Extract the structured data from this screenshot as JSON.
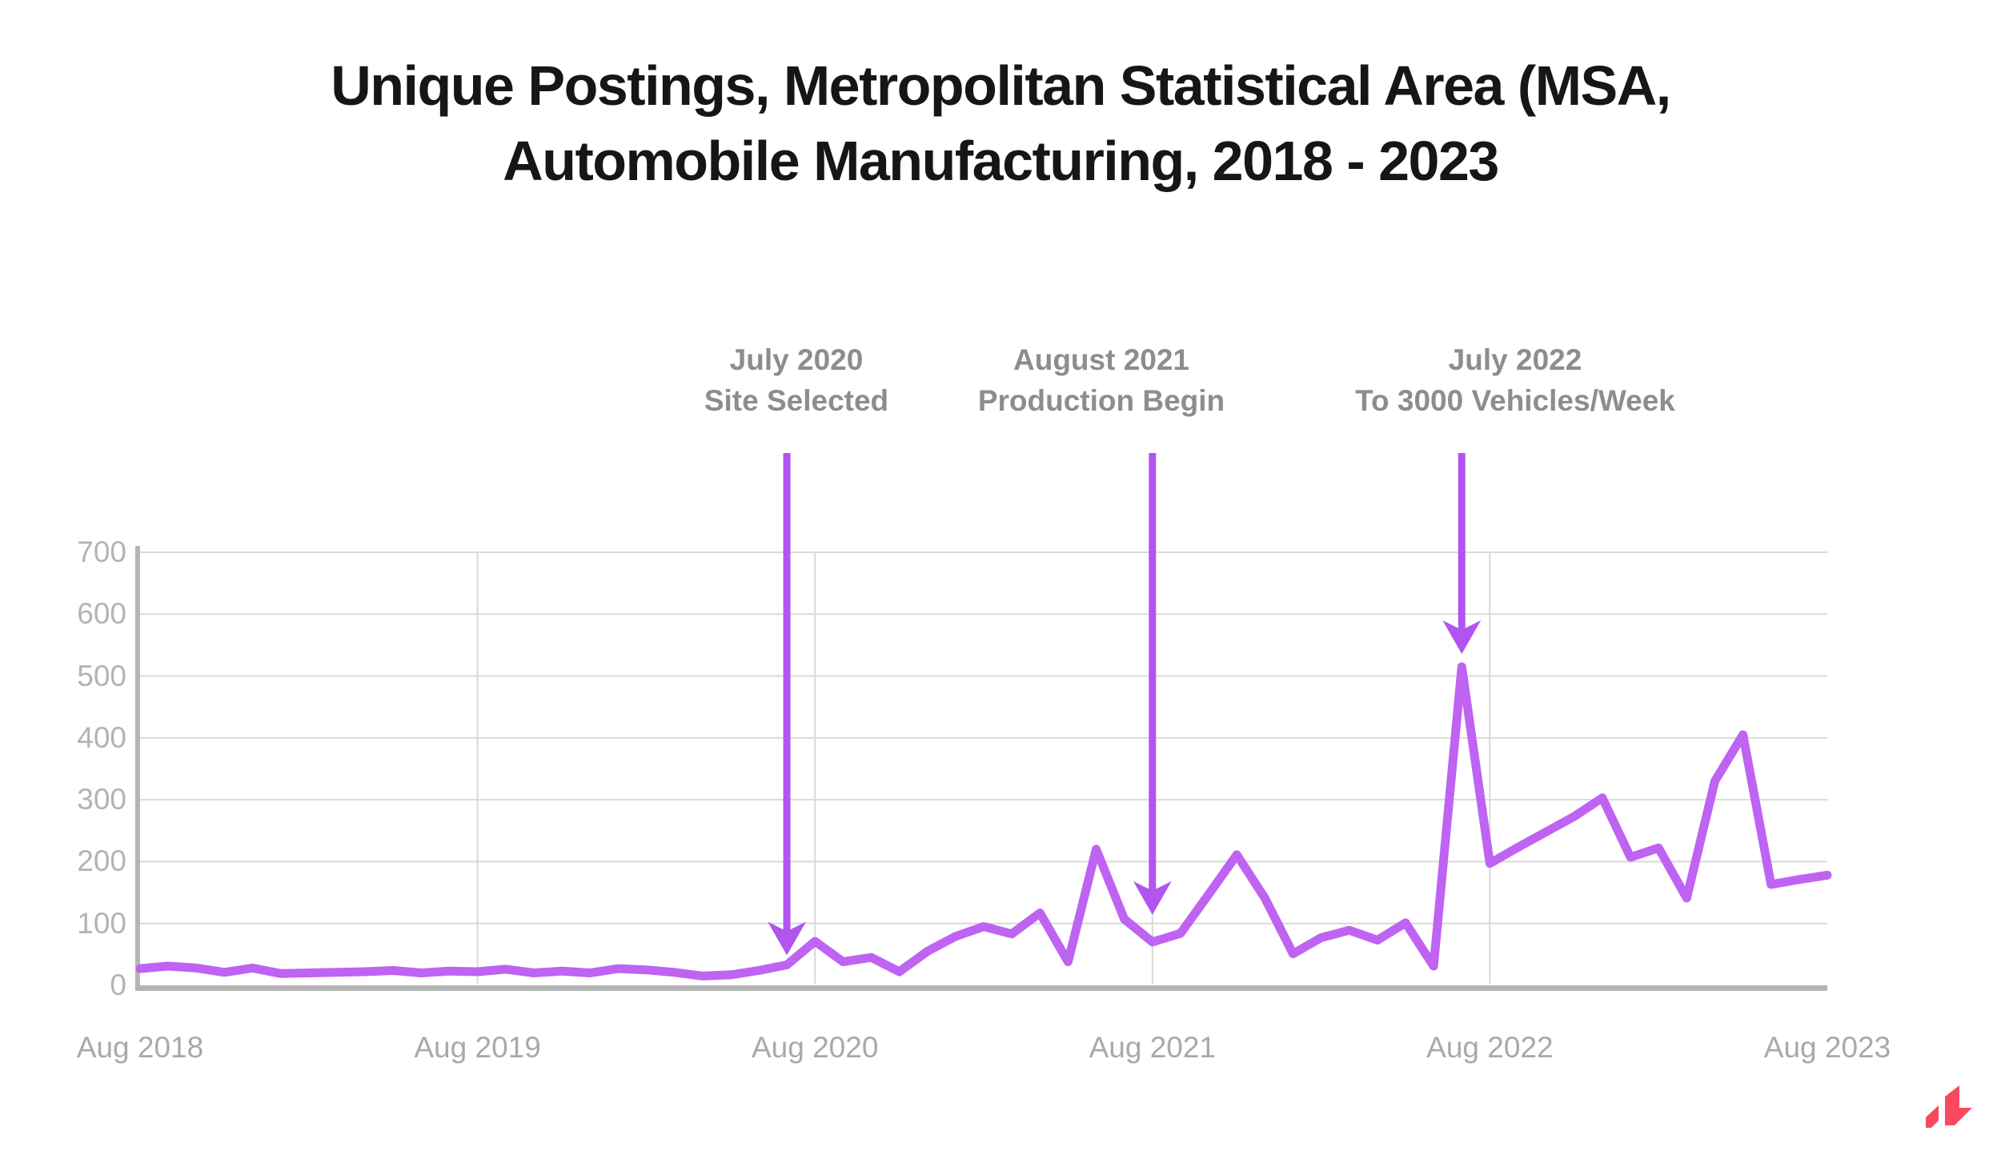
{
  "title": {
    "line1": "Unique Postings, Metropolitan Statistical Area (MSA,",
    "line2": "Automobile Manufacturing, 2018 - 2023"
  },
  "annotations": [
    {
      "line1": "July 2020",
      "line2": "Site Selected",
      "month_index": 23
    },
    {
      "line1": "August 2021",
      "line2": "Production Begin",
      "month_index": 36
    },
    {
      "line1": "July 2022",
      "line2": "To 3000 Vehicles/Week",
      "month_index": 47
    }
  ],
  "chart_data": {
    "type": "line",
    "title": "Unique Postings, Metropolitan Statistical Area (MSA, Automobile Manufacturing, 2018 - 2023",
    "x_monthly_start": "Aug 2018",
    "x_monthly_end": "Aug 2023",
    "x_tick_labels": [
      "Aug 2018",
      "Aug 2019",
      "Aug 2020",
      "Aug 2021",
      "Aug 2022",
      "Aug 2023"
    ],
    "y_ticks": [
      0,
      100,
      200,
      300,
      400,
      500,
      600,
      700
    ],
    "ylim": [
      0,
      700
    ],
    "grid": "horizontal every 100, vertical at yearly ticks",
    "legend": "none",
    "series": [
      {
        "name": "Unique Postings",
        "values": [
          27,
          31,
          28,
          21,
          28,
          19,
          20,
          21,
          22,
          24,
          20,
          23,
          22,
          26,
          20,
          23,
          20,
          27,
          25,
          21,
          15,
          17,
          24,
          33,
          71,
          38,
          45,
          22,
          55,
          79,
          95,
          83,
          117,
          38,
          220,
          107,
          70,
          84,
          147,
          211,
          141,
          51,
          77,
          89,
          73,
          101,
          31,
          515,
          197,
          223,
          248,
          273,
          303,
          207,
          222,
          141,
          330,
          405,
          163,
          171,
          178
        ]
      }
    ]
  },
  "colors": {
    "line": "#bf63f2",
    "arrow": "#b254ef",
    "gridline": "#d9d9d9",
    "axis": "#b5b5b5",
    "title_text": "#161616",
    "annotation_text": "#8d8d8d",
    "x_label_text": "#a9a9a9",
    "y_label_text": "#b3b3b3",
    "logo": "#f9495e"
  },
  "logo": {
    "name": "lightcast-mark"
  }
}
